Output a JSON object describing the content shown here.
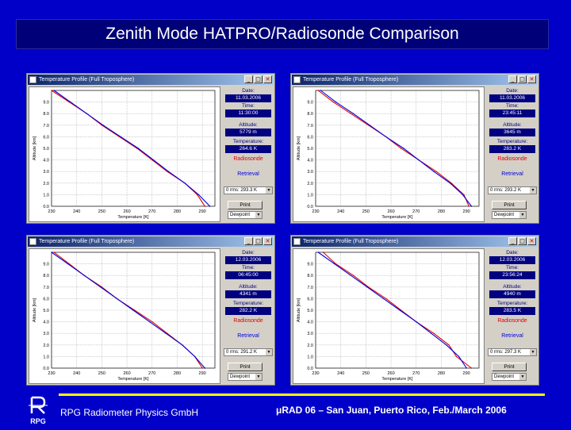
{
  "slide": {
    "title": "Zenith Mode HATPRO/Radiosonde Comparison",
    "footer_left": "RPG Radiometer Physics GmbH",
    "footer_right": "μRAD 06 – San Juan, Puerto Rico, Feb./March 2006",
    "logo_text": "RPG"
  },
  "windows": [
    {
      "title": "Temperature Profile (Full Troposphere)",
      "date_label": "Date:",
      "date": "11.03.2006",
      "time_label": "Time:",
      "time": "11:30:00",
      "alt_label": "Altitude:",
      "altitude": "5779 m",
      "temp_label": "Temperature:",
      "temperature": "264.6 K",
      "radiosonde_label": "Radiosonde",
      "retrieval_label": "Retrieval",
      "rms": "0 rms: 293.3 K",
      "print_label": "Print",
      "select_label": "Dewpoint"
    },
    {
      "title": "Temperature Profile (Full Troposphere)",
      "date_label": "Date:",
      "date": "11.03.2006",
      "time_label": "Time:",
      "time": "23:45:11",
      "alt_label": "Altitude:",
      "altitude": "3645 m",
      "temp_label": "Temperature:",
      "temperature": "283.2 K",
      "radiosonde_label": "Radiosonde",
      "retrieval_label": "Retrieval",
      "rms": "0 rms: 293.2 K",
      "print_label": "Print",
      "select_label": "Dewpoint"
    },
    {
      "title": "Temperature Profile (Full Troposphere)",
      "date_label": "Date:",
      "date": "12.03.2006",
      "time_label": "Time:",
      "time": "06:45:00",
      "alt_label": "Altitude:",
      "altitude": "4341 m",
      "temp_label": "Temperature:",
      "temperature": "282.2 K",
      "radiosonde_label": "Radiosonde",
      "retrieval_label": "Retrieval",
      "rms": "0 rms: 291.2 K",
      "print_label": "Print",
      "select_label": "Dewpoint"
    },
    {
      "title": "Temperature Profile (Full Troposphere)",
      "date_label": "Date:",
      "date": "12.03.2006",
      "time_label": "Time:",
      "time": "23:56:24",
      "alt_label": "Altitude:",
      "altitude": "4940 m",
      "temp_label": "Temperature:",
      "temperature": "283.5 K",
      "radiosonde_label": "Radiosonde",
      "retrieval_label": "Retrieval",
      "rms": "0 rms: 297.3 K",
      "print_label": "Print",
      "select_label": "Dewpoint"
    }
  ],
  "colors": {
    "slide_bg": "#0000c8",
    "title_bg": "#000078",
    "footer_line": "#ffff00",
    "radiosonde": "#e00000",
    "retrieval": "#0000e0",
    "field_bg": "#000080"
  },
  "chart_data": [
    {
      "type": "line",
      "xlabel": "Temperature [K]",
      "ylabel": "Altitude [km]",
      "xlim": [
        230,
        295
      ],
      "ylim": [
        0,
        10
      ],
      "x_ticks": [
        230,
        240,
        250,
        260,
        270,
        280,
        290
      ],
      "y_ticks": [
        "0.0",
        "1.0",
        "2.0",
        "3.0",
        "4.0",
        "5.0",
        "6.0",
        "7.0",
        "8.0",
        "9.0"
      ],
      "grid": true,
      "series": [
        {
          "name": "Radiosonde",
          "color": "#e00000",
          "x": [
            291,
            288,
            283,
            276,
            270,
            264,
            257,
            250,
            244,
            237,
            230
          ],
          "y": [
            0,
            1,
            2,
            3,
            4,
            5,
            6,
            7,
            8,
            9,
            10
          ]
        },
        {
          "name": "Retrieval",
          "color": "#0000e0",
          "x": [
            293,
            288.5,
            283,
            276.5,
            270.5,
            264.5,
            257.5,
            250.5,
            244,
            237.5,
            231
          ],
          "y": [
            0,
            1,
            2,
            3,
            4,
            5,
            6,
            7,
            8,
            9,
            10
          ]
        }
      ]
    },
    {
      "type": "line",
      "xlabel": "Temperature [K]",
      "ylabel": "Altitude [km]",
      "xlim": [
        230,
        295
      ],
      "ylim": [
        0,
        10
      ],
      "x_ticks": [
        230,
        240,
        250,
        260,
        270,
        280,
        290
      ],
      "y_ticks": [
        "0.0",
        "1.0",
        "2.0",
        "3.0",
        "4.0",
        "5.0",
        "6.0",
        "7.0",
        "8.0",
        "9.0"
      ],
      "grid": true,
      "series": [
        {
          "name": "Radiosonde",
          "color": "#e00000",
          "x": [
            291,
            289,
            284,
            278,
            271,
            264,
            258,
            251,
            244,
            237,
            231
          ],
          "y": [
            0,
            1,
            2,
            3,
            4,
            5,
            6,
            7,
            8,
            9,
            10
          ]
        },
        {
          "name": "Retrieval",
          "color": "#0000e0",
          "x": [
            292,
            288.5,
            283.5,
            277,
            271,
            265,
            258,
            251.5,
            245,
            238,
            232
          ],
          "y": [
            0,
            1,
            2,
            3,
            4,
            5,
            6,
            7,
            8,
            9,
            10
          ]
        }
      ]
    },
    {
      "type": "line",
      "xlabel": "Temperature [K]",
      "ylabel": "Altitude [km]",
      "xlim": [
        230,
        295
      ],
      "ylim": [
        0,
        10
      ],
      "x_ticks": [
        230,
        240,
        250,
        260,
        270,
        280,
        290
      ],
      "y_ticks": [
        "0.0",
        "1.0",
        "2.0",
        "3.0",
        "4.0",
        "5.0",
        "6.0",
        "7.0",
        "8.0",
        "9.0"
      ],
      "grid": true,
      "series": [
        {
          "name": "Radiosonde",
          "color": "#e00000",
          "x": [
            290,
            287,
            282,
            276,
            270,
            263,
            256,
            250,
            243,
            237,
            231
          ],
          "y": [
            0,
            1,
            2,
            3,
            4,
            5,
            6,
            7,
            8,
            9,
            10
          ]
        },
        {
          "name": "Retrieval",
          "color": "#0000e0",
          "x": [
            291,
            287,
            282,
            275.5,
            269,
            262.5,
            256,
            249.5,
            243,
            236.5,
            230
          ],
          "y": [
            0,
            1,
            2,
            3,
            4,
            5,
            6,
            7,
            8,
            9,
            10
          ]
        }
      ]
    },
    {
      "type": "line",
      "xlabel": "Temperature [K]",
      "ylabel": "Altitude [km]",
      "xlim": [
        230,
        295
      ],
      "ylim": [
        0,
        10
      ],
      "x_ticks": [
        230,
        240,
        250,
        260,
        270,
        280,
        290
      ],
      "y_ticks": [
        "0.0",
        "1.0",
        "2.0",
        "3.0",
        "4.0",
        "5.0",
        "6.0",
        "7.0",
        "8.0",
        "9.0"
      ],
      "grid": true,
      "series": [
        {
          "name": "Radiosonde",
          "color": "#e00000",
          "x": [
            292,
            286,
            283,
            277,
            270,
            264,
            258,
            251,
            245,
            238,
            233
          ],
          "y": [
            0,
            1,
            2,
            3,
            4,
            5,
            6,
            7,
            8,
            9,
            10
          ]
        },
        {
          "name": "Retrieval",
          "color": "#0000e0",
          "x": [
            290,
            287,
            282,
            276,
            270,
            263.5,
            257,
            250.5,
            244,
            237.5,
            231
          ],
          "y": [
            0,
            1,
            2,
            3,
            4,
            5,
            6,
            7,
            8,
            9,
            10
          ]
        }
      ]
    }
  ]
}
